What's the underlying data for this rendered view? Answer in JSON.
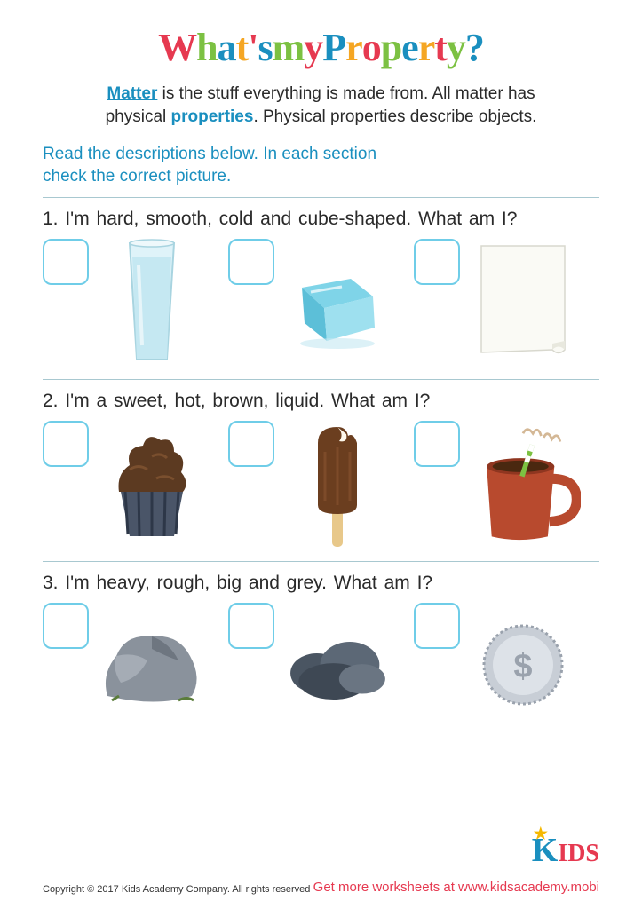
{
  "title_chars": [
    {
      "t": "W",
      "c": "#e63950"
    },
    {
      "t": "h",
      "c": "#7cc142"
    },
    {
      "t": "a",
      "c": "#1a8fbf"
    },
    {
      "t": "t",
      "c": "#f5a623"
    },
    {
      "t": "'",
      "c": "#e63950"
    },
    {
      "t": "s",
      "c": "#1a8fbf"
    },
    {
      "t": " ",
      "c": "#000"
    },
    {
      "t": "m",
      "c": "#7cc142"
    },
    {
      "t": "y",
      "c": "#e63950"
    },
    {
      "t": " ",
      "c": "#000"
    },
    {
      "t": "P",
      "c": "#1a8fbf"
    },
    {
      "t": "r",
      "c": "#f5a623"
    },
    {
      "t": "o",
      "c": "#e63950"
    },
    {
      "t": "p",
      "c": "#7cc142"
    },
    {
      "t": "e",
      "c": "#1a8fbf"
    },
    {
      "t": "r",
      "c": "#f5a623"
    },
    {
      "t": "t",
      "c": "#e63950"
    },
    {
      "t": "y",
      "c": "#7cc142"
    },
    {
      "t": "?",
      "c": "#1a8fbf"
    }
  ],
  "intro": {
    "matter": "Matter",
    "l1": " is the stuff everything is made from. All matter has",
    "l2": "physical ",
    "properties": "properties",
    "l3": ". Physical properties describe objects."
  },
  "instructions": "Read the descriptions below. In each section\ncheck the correct picture.",
  "questions": [
    {
      "text": "1. I'm hard, smooth, cold and cube-shaped. What am I?",
      "items": [
        "glass-water",
        "ice-cube",
        "paper"
      ]
    },
    {
      "text": "2. I'm a sweet, hot, brown, liquid. What am I?",
      "items": [
        "cupcake",
        "popsicle",
        "hot-cocoa"
      ]
    },
    {
      "text": "3. I'm heavy, rough, big and grey. What am I?",
      "items": [
        "rock",
        "cloud",
        "coin"
      ]
    }
  ],
  "copyright": "Copyright © 2017 Kids Academy Company. All rights reserved",
  "getmore": "Get more worksheets at www.kidsacademy.mobi",
  "logo": {
    "k": "K",
    "rest": "IDS"
  },
  "colors": {
    "accent": "#1a8fbf",
    "checkbox": "#6fcde8",
    "red": "#e63950",
    "green": "#7cc142",
    "orange": "#f5a623",
    "text": "#2a2a2a",
    "divider": "#a8c8d0"
  }
}
